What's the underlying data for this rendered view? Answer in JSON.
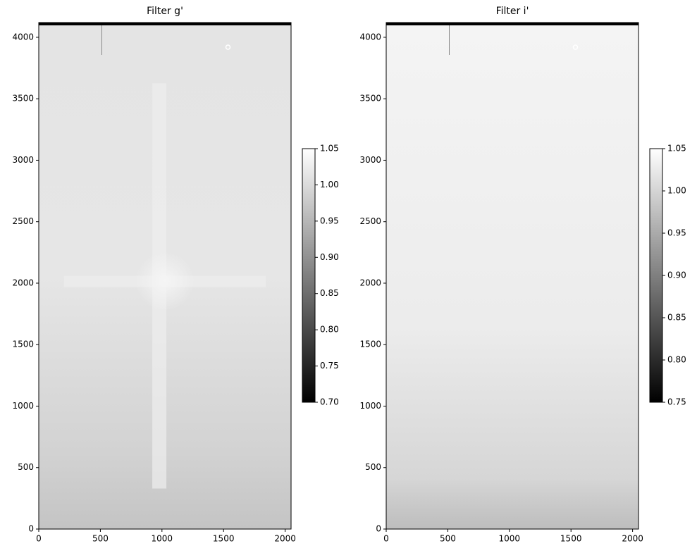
{
  "chart_data": [
    {
      "type": "image",
      "title": "Filter g'",
      "colormap": "gray",
      "xlim": [
        0,
        2048
      ],
      "ylim": [
        0,
        4120
      ],
      "xticks": [
        0,
        500,
        1000,
        1500,
        2000
      ],
      "yticks": [
        0,
        500,
        1000,
        1500,
        2000,
        2500,
        3000,
        3500,
        4000
      ],
      "clim": [
        0.7,
        1.05
      ],
      "cticks": [
        {
          "value": 0.7,
          "label": "0.70"
        },
        0.75,
        {
          "value": 0.8,
          "label": "0.80"
        },
        0.85,
        {
          "value": 0.9,
          "label": "0.90"
        },
        0.95,
        {
          "value": 1.0,
          "label": "1.00"
        },
        1.05
      ]
    },
    {
      "type": "image",
      "title": "Filter i'",
      "colormap": "gray",
      "xlim": [
        0,
        2048
      ],
      "ylim": [
        0,
        4120
      ],
      "xticks": [
        0,
        500,
        1000,
        1500,
        2000
      ],
      "yticks": [
        0,
        500,
        1000,
        1500,
        2000,
        2500,
        3000,
        3500,
        4000
      ],
      "clim": [
        0.75,
        1.05
      ],
      "cticks": [
        0.75,
        {
          "value": 0.8,
          "label": "0.80"
        },
        0.85,
        {
          "value": 0.9,
          "label": "0.90"
        },
        0.95,
        {
          "value": 1.0,
          "label": "1.00"
        },
        1.05
      ]
    }
  ]
}
